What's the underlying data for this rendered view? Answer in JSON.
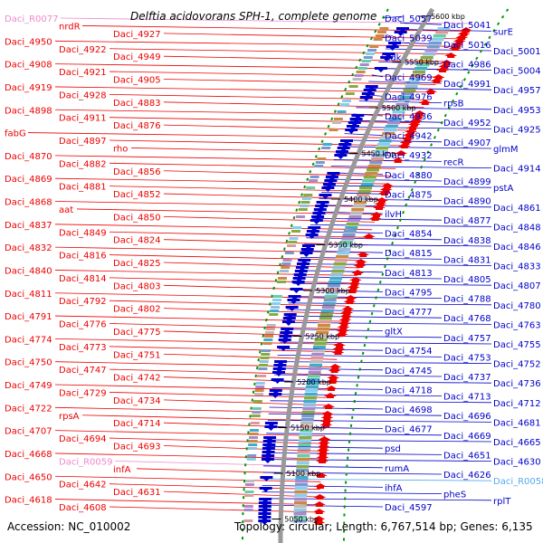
{
  "title": "Delftia acidovorans SPH-1, complete genome",
  "accession": "Accession: NC_010002",
  "topology": "Topology: circular; Length: 6,767,514 bp; Genes: 6,135",
  "colors": {
    "forward": "#ee0000",
    "reverse": "#0000cc",
    "rna": "#ee88cc",
    "rna_reverse": "#55aaee",
    "backbone": "#999999",
    "dots": "#009900"
  },
  "ticks": [
    "5600 kbp",
    "5550 kbp",
    "5500 kbp",
    "5450 kbp",
    "5400 kbp",
    "5350 kbp",
    "5300 kbp",
    "5250 kbp",
    "5200 kbp",
    "5150 kbp",
    "5100 kbp",
    "5050 kbp"
  ],
  "left_labels": [
    "Daci_R0077",
    "nrdR",
    "Daci_4927",
    "Daci_4950",
    "Daci_4922",
    "Daci_4949",
    "Daci_4908",
    "Daci_4921",
    "Daci_4905",
    "Daci_4919",
    "Daci_4928",
    "Daci_4883",
    "Daci_4898",
    "Daci_4911",
    "Daci_4876",
    "fabG",
    "Daci_4897",
    "rho",
    "Daci_4870",
    "Daci_4882",
    "Daci_4856",
    "Daci_4869",
    "Daci_4881",
    "Daci_4852",
    "Daci_4868",
    "aat",
    "Daci_4850",
    "Daci_4837",
    "Daci_4849",
    "Daci_4824",
    "Daci_4832",
    "Daci_4816",
    "Daci_4825",
    "Daci_4840",
    "Daci_4814",
    "Daci_4803",
    "Daci_4811",
    "Daci_4792",
    "Daci_4802",
    "Daci_4791",
    "Daci_4776",
    "Daci_4775",
    "Daci_4774",
    "Daci_4773",
    "Daci_4751",
    "Daci_4750",
    "Daci_4747",
    "Daci_4742",
    "Daci_4749",
    "Daci_4729",
    "Daci_4734",
    "Daci_4722",
    "rpsA",
    "Daci_4714",
    "Daci_4707",
    "Daci_4694",
    "Daci_4693",
    "Daci_4668",
    "Daci_R0059",
    "infA",
    "Daci_4650",
    "Daci_4642",
    "Daci_4631",
    "Daci_4618",
    "Daci_4608"
  ],
  "right_labels": [
    "Daci_5057",
    "Daci_5041",
    "surE",
    "Daci_5039",
    "Daci_5016",
    "Daci_5001",
    "ndk",
    "Daci_4986",
    "Daci_5004",
    "Daci_4969",
    "Daci_4991",
    "Daci_4957",
    "Daci_4976",
    "rpsB",
    "Daci_4953",
    "Daci_4936",
    "Daci_4952",
    "Daci_4925",
    "Daci_4942",
    "Daci_4907",
    "glmM",
    "Daci_4932",
    "recR",
    "Daci_4914",
    "Daci_4880",
    "Daci_4899",
    "pstA",
    "Daci_4875",
    "Daci_4890",
    "Daci_4861",
    "ilvH",
    "Daci_4877",
    "Daci_4848",
    "Daci_4854",
    "Daci_4838",
    "Daci_4846",
    "Daci_4815",
    "Daci_4831",
    "Daci_4833",
    "Daci_4813",
    "Daci_4805",
    "Daci_4807",
    "Daci_4795",
    "Daci_4788",
    "Daci_4780",
    "Daci_4777",
    "Daci_4768",
    "Daci_4763",
    "gltX",
    "Daci_4757",
    "Daci_4755",
    "Daci_4754",
    "Daci_4753",
    "Daci_4752",
    "Daci_4745",
    "Daci_4737",
    "Daci_4736",
    "Daci_4718",
    "Daci_4713",
    "Daci_4712",
    "Daci_4698",
    "Daci_4696",
    "Daci_4681",
    "Daci_4677",
    "Daci_4669",
    "Daci_4665",
    "psd",
    "Daci_4651",
    "Daci_4630",
    "rumA",
    "Daci_4626",
    "Daci_R0058",
    "ihfA",
    "pheS",
    "rplT",
    "Daci_4597"
  ]
}
